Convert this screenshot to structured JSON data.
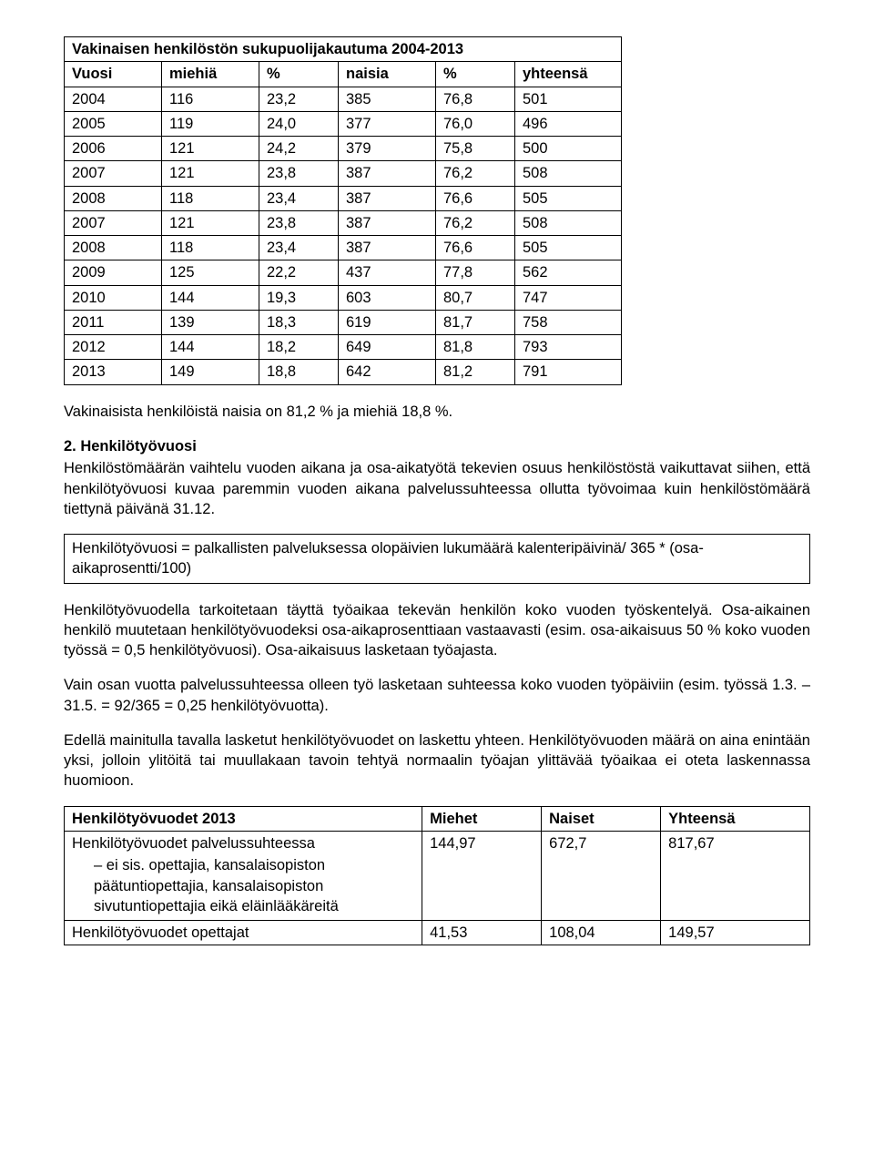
{
  "table1": {
    "title": "Vakinaisen henkilöstön sukupuolijakautuma 2004-2013",
    "headers": [
      "Vuosi",
      "miehiä",
      "%",
      "naisia",
      "%",
      "yhteensä"
    ],
    "rows": [
      [
        "2004",
        "116",
        "23,2",
        "385",
        "76,8",
        "501"
      ],
      [
        "2005",
        "119",
        "24,0",
        "377",
        "76,0",
        "496"
      ],
      [
        "2006",
        "121",
        "24,2",
        "379",
        "75,8",
        "500"
      ],
      [
        "2007",
        "121",
        "23,8",
        "387",
        "76,2",
        "508"
      ],
      [
        "2008",
        "118",
        "23,4",
        "387",
        "76,6",
        "505"
      ],
      [
        "2007",
        "121",
        "23,8",
        "387",
        "76,2",
        "508"
      ],
      [
        "2008",
        "118",
        "23,4",
        "387",
        "76,6",
        "505"
      ],
      [
        "2009",
        "125",
        "22,2",
        "437",
        "77,8",
        "562"
      ],
      [
        "2010",
        "144",
        "19,3",
        "603",
        "80,7",
        "747"
      ],
      [
        "2011",
        "139",
        "18,3",
        "619",
        "81,7",
        "758"
      ],
      [
        "2012",
        "144",
        "18,2",
        "649",
        "81,8",
        "793"
      ],
      [
        "2013",
        "149",
        "18,8",
        "642",
        "81,2",
        "791"
      ]
    ],
    "col_widths": [
      "90px",
      "90px",
      "70px",
      "90px",
      "70px",
      "100px"
    ]
  },
  "p_after_table1": "Vakinaisista henkilöistä naisia on 81,2 % ja miehiä 18,8 %.",
  "section2_head": "2. Henkilötyövuosi",
  "section2_body": "Henkilöstömäärän vaihtelu vuoden aikana ja osa-aikatyötä tekevien osuus henkilöstöstä vaikuttavat siihen, että henkilötyövuosi kuvaa paremmin vuoden aikana palvelussuhteessa ollutta työvoimaa kuin henkilöstömäärä tiettynä päivänä 31.12.",
  "box_text": "Henkilötyövuosi = palkallisten palveluksessa olopäivien lukumäärä kalenteripäivinä/ 365 * (osa-aikaprosentti/100)",
  "p3": "Henkilötyövuodella tarkoitetaan täyttä työaikaa tekevän henkilön koko vuoden työskentelyä. Osa-aikainen henkilö muutetaan henkilötyövuodeksi osa-aikaprosenttiaan vastaavasti (esim. osa-aikaisuus 50 % koko vuoden työssä = 0,5 henkilötyövuosi). Osa-aikaisuus lasketaan työajasta.",
  "p4": "Vain osan vuotta palvelussuhteessa olleen työ lasketaan suhteessa koko vuoden työpäiviin (esim. työssä 1.3. – 31.5. = 92/365 = 0,25 henkilötyövuotta).",
  "p5": "Edellä mainitulla tavalla lasketut henkilötyövuodet on laskettu yhteen. Henkilötyövuoden määrä on aina enintään yksi, jolloin ylitöitä tai muullakaan tavoin tehtyä normaalin työajan ylittävää työaikaa ei oteta laskennassa huomioon.",
  "table2": {
    "headers": [
      "Henkilötyövuodet 2013",
      "Miehet",
      "Naiset",
      "Yhteensä"
    ],
    "row1_label": "Henkilötyövuodet palvelussuhteessa",
    "row1_sub": "ei sis. opettajia, kansalaisopiston päätuntiopettajia, kansalaisopiston sivutuntiopettajia eikä eläinlääkäreitä",
    "row1_vals": [
      "144,97",
      "672,7",
      "817,67"
    ],
    "row2_label": "Henkilötyövuodet opettajat",
    "row2_vals": [
      "41,53",
      "108,04",
      "149,57"
    ],
    "col_widths": [
      "48%",
      "16%",
      "16%",
      "20%"
    ]
  }
}
